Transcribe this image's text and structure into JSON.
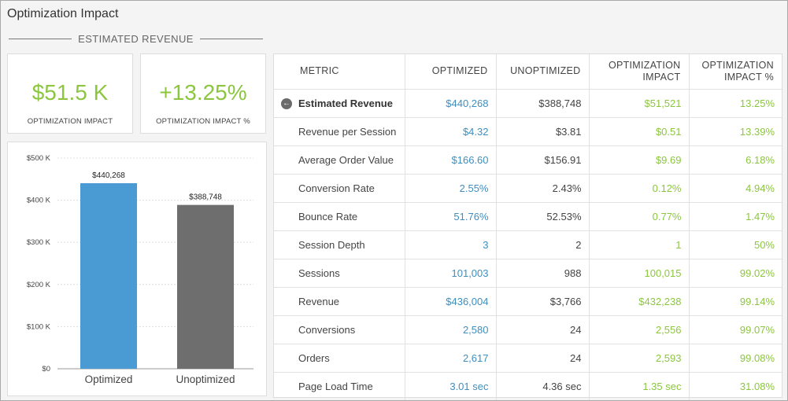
{
  "page_title": "Optimization Impact",
  "section_title": "ESTIMATED REVENUE",
  "kpis": [
    {
      "value": "$51.5 K",
      "label": "OPTIMIZATION IMPACT"
    },
    {
      "value": "+13.25%",
      "label": "OPTIMIZATION IMPACT %"
    }
  ],
  "chart_data": {
    "type": "bar",
    "categories": [
      "Optimized",
      "Unoptimized"
    ],
    "values": [
      440268,
      388748
    ],
    "data_labels": [
      "$440,268",
      "$388,748"
    ],
    "colors": [
      "#4a9ad4",
      "#6e6e6e"
    ],
    "ylim": [
      0,
      500000
    ],
    "y_ticks": [
      "$0",
      "$100 K",
      "$200 K",
      "$300 K",
      "$400 K",
      "$500 K"
    ],
    "grid": true
  },
  "table": {
    "headers": [
      "METRIC",
      "OPTIMIZED",
      "UNOPTIMIZED",
      "OPTIMIZATION IMPACT",
      "OPTIMIZATION IMPACT %"
    ],
    "rows": [
      {
        "metric": "Estimated Revenue",
        "optimized": "$440,268",
        "unoptimized": "$388,748",
        "impact": "$51,521",
        "impact_pct": "13.25%",
        "bold": true,
        "icon": "back-arrow-icon"
      },
      {
        "metric": "Revenue per Session",
        "optimized": "$4.32",
        "unoptimized": "$3.81",
        "impact": "$0.51",
        "impact_pct": "13.39%"
      },
      {
        "metric": "Average Order Value",
        "optimized": "$166.60",
        "unoptimized": "$156.91",
        "impact": "$9.69",
        "impact_pct": "6.18%"
      },
      {
        "metric": "Conversion Rate",
        "optimized": "2.55%",
        "unoptimized": "2.43%",
        "impact": "0.12%",
        "impact_pct": "4.94%"
      },
      {
        "metric": "Bounce Rate",
        "optimized": "51.76%",
        "unoptimized": "52.53%",
        "impact": "0.77%",
        "impact_pct": "1.47%"
      },
      {
        "metric": "Session Depth",
        "optimized": "3",
        "unoptimized": "2",
        "impact": "1",
        "impact_pct": "50%"
      },
      {
        "metric": "Sessions",
        "optimized": "101,003",
        "unoptimized": "988",
        "impact": "100,015",
        "impact_pct": "99.02%"
      },
      {
        "metric": "Revenue",
        "optimized": "$436,004",
        "unoptimized": "$3,766",
        "impact": "$432,238",
        "impact_pct": "99.14%"
      },
      {
        "metric": "Conversions",
        "optimized": "2,580",
        "unoptimized": "24",
        "impact": "2,556",
        "impact_pct": "99.07%"
      },
      {
        "metric": "Orders",
        "optimized": "2,617",
        "unoptimized": "24",
        "impact": "2,593",
        "impact_pct": "99.08%"
      },
      {
        "metric": "Page Load Time",
        "optimized": "3.01 sec",
        "unoptimized": "4.36 sec",
        "impact": "1.35 sec",
        "impact_pct": "31.08%"
      }
    ]
  },
  "colors": {
    "positive": "#8cc63f",
    "link": "#3e8ebf"
  }
}
